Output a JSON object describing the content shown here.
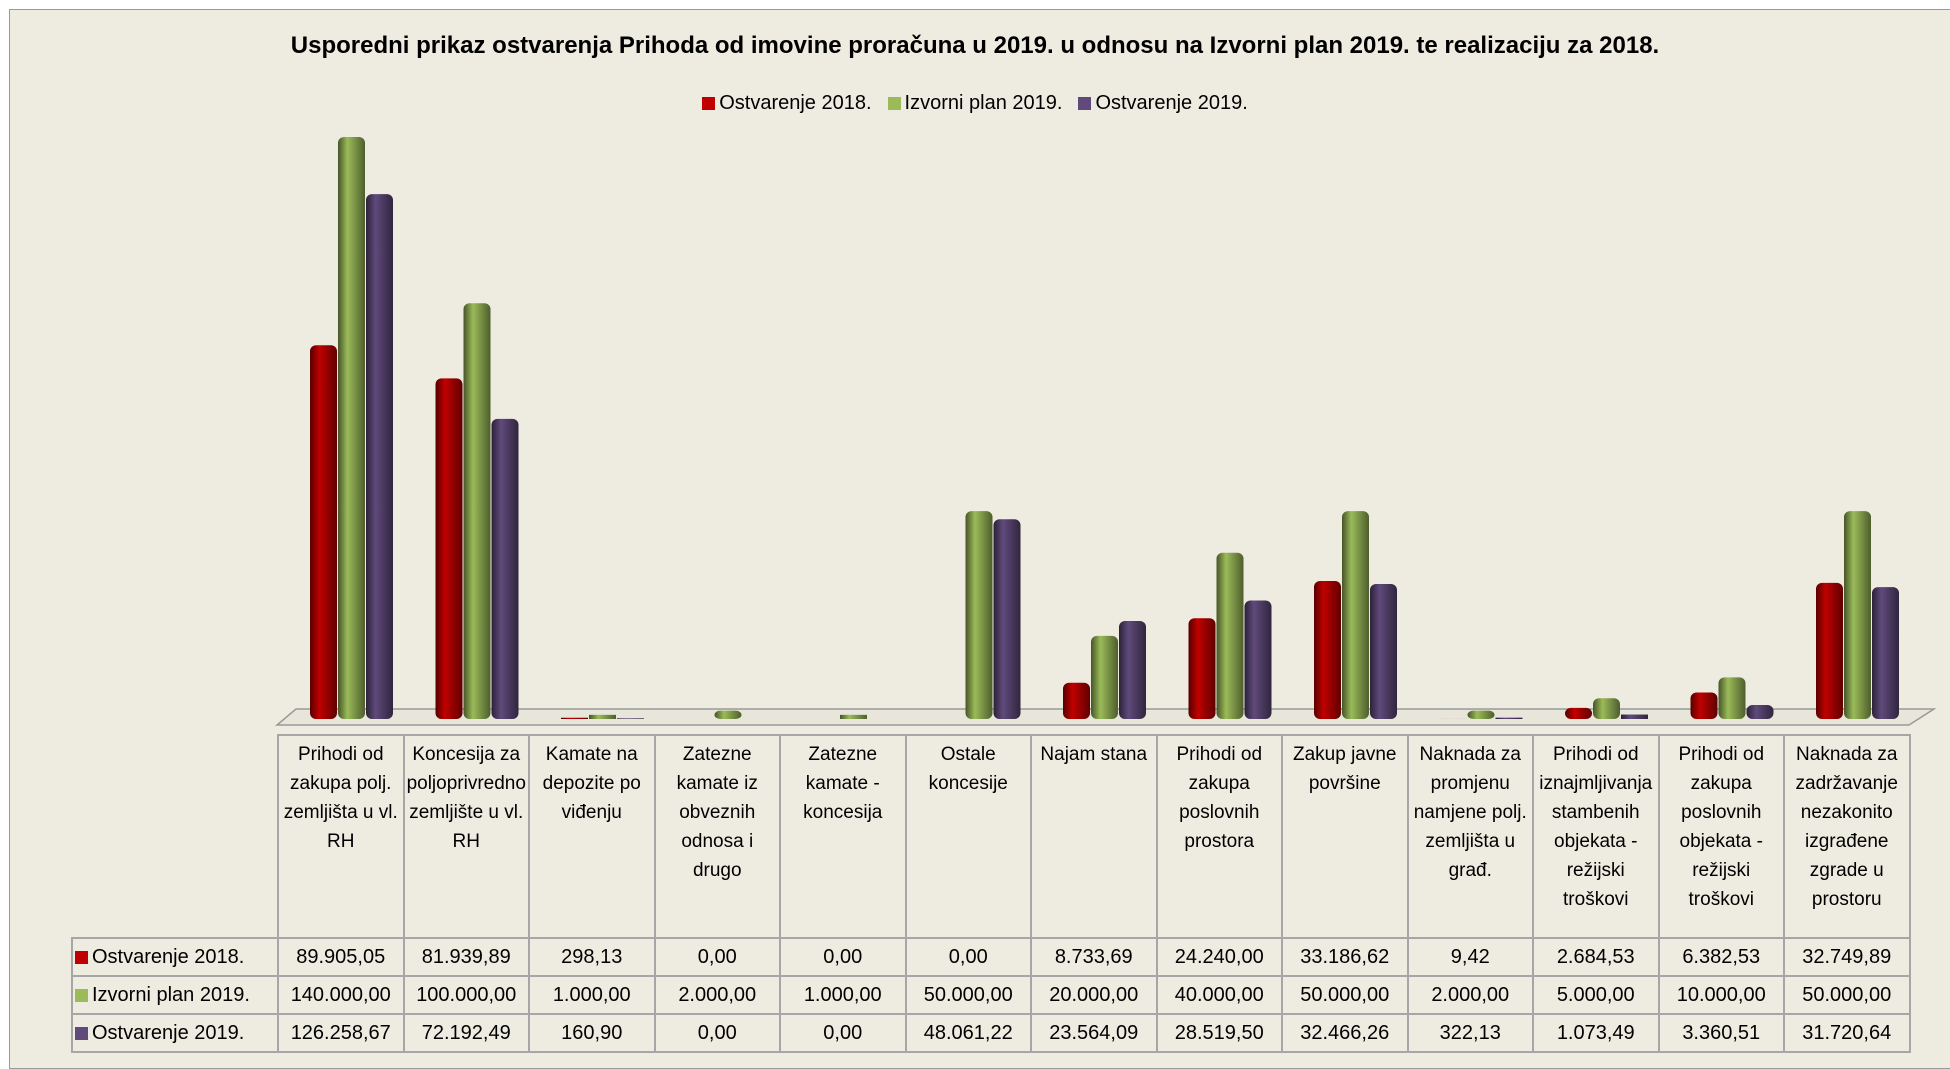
{
  "chart_data": {
    "type": "bar",
    "title": "Usporedni prikaz ostvarenja Prihoda od imovine proračuna u 2019. u odnosu na Izvorni plan 2019. te realizaciju za 2018.",
    "categories": [
      "Prihodi od zakupa polj. zemljišta u vl. RH",
      "Koncesija za poljoprivredno zemljište u vl. RH",
      "Kamate na depozite po viđenju",
      "Zatezne kamate iz obveznih odnosa i drugo",
      "Zatezne kamate - koncesija",
      "Ostale koncesije",
      "Najam stana",
      "Prihodi od zakupa poslovnih prostora",
      "Zakup javne površine",
      "Naknada za promjenu namjene polj. zemljišta u građ.",
      "Prihodi od iznajmljivanja stambenih objekata - režijski troškovi",
      "Prihodi od zakupa poslovnih objekata - režijski troškovi",
      "Naknada za zadržavanje nezakonito izgrađene zgrade u prostoru"
    ],
    "series": [
      {
        "name": "Ostvarenje 2018.",
        "color": "#c00000",
        "values": [
          89905.05,
          81939.89,
          298.13,
          0,
          0,
          0,
          8733.69,
          24240,
          33186.62,
          9.42,
          2684.53,
          6382.53,
          32749.89
        ],
        "value_labels": [
          "89.905,05",
          "81.939,89",
          "298,13",
          "0,00",
          "0,00",
          "0,00",
          "8.733,69",
          "24.240,00",
          "33.186,62",
          "9,42",
          "2.684,53",
          "6.382,53",
          "32.749,89"
        ]
      },
      {
        "name": "Izvorni plan 2019.",
        "color": "#9bbb59",
        "values": [
          140000,
          100000,
          1000,
          2000,
          1000,
          50000,
          20000,
          40000,
          50000,
          2000,
          5000,
          10000,
          50000
        ],
        "value_labels": [
          "140.000,00",
          "100.000,00",
          "1.000,00",
          "2.000,00",
          "1.000,00",
          "50.000,00",
          "20.000,00",
          "40.000,00",
          "50.000,00",
          "2.000,00",
          "5.000,00",
          "10.000,00",
          "50.000,00"
        ]
      },
      {
        "name": "Ostvarenje 2019.",
        "color": "#604a7b",
        "values": [
          126258.67,
          72192.49,
          160.9,
          0,
          0,
          48061.22,
          23564.09,
          28519.5,
          32466.26,
          322.13,
          1073.49,
          3360.51,
          31720.64
        ],
        "value_labels": [
          "126.258,67",
          "72.192,49",
          "160,90",
          "0,00",
          "0,00",
          "48.061,22",
          "23.564,09",
          "28.519,50",
          "32.466,26",
          "322,13",
          "1.073,49",
          "3.360,51",
          "31.720,64"
        ]
      }
    ]
  }
}
